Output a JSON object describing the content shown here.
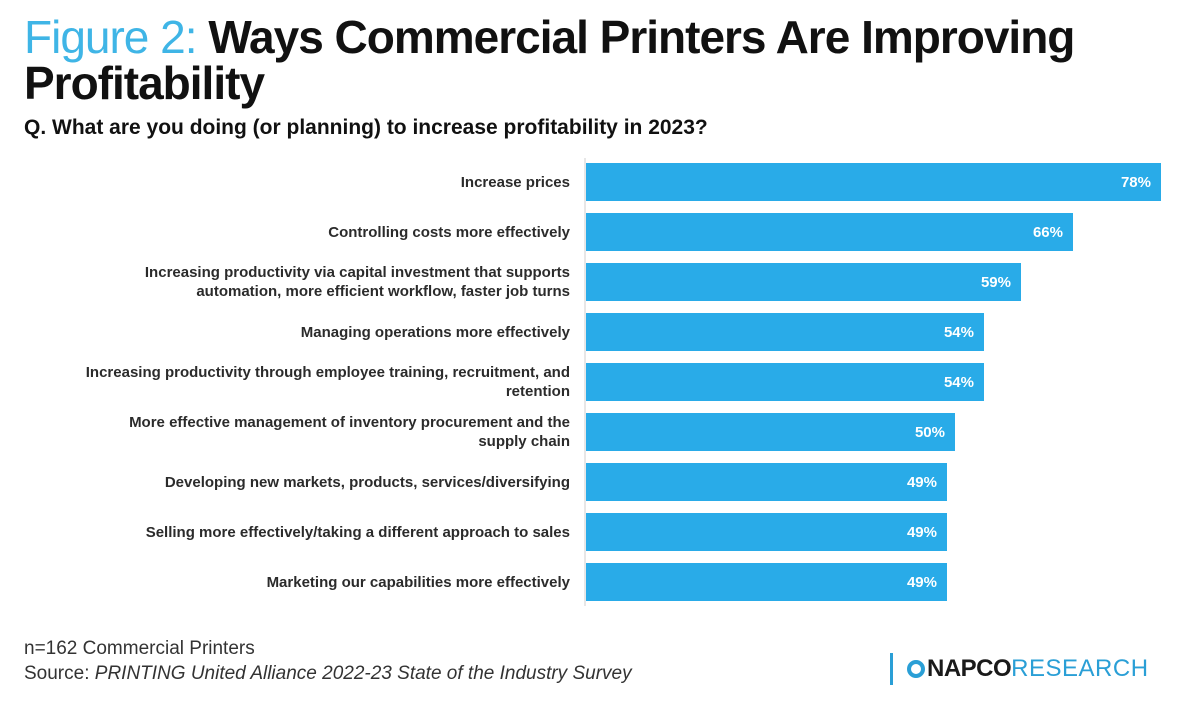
{
  "header": {
    "figure_prefix": "Figure 2:",
    "title": "Ways Commercial Printers Are Improving Profitability",
    "question": "Q. What are you doing (or planning) to increase profitability in 2023?"
  },
  "chart_data": {
    "type": "bar",
    "orientation": "horizontal",
    "title": "Ways Commercial Printers Are Improving Profitability",
    "categories": [
      "Increase prices",
      "Controlling costs more effectively",
      "Increasing productivity via capital investment that supports automation, more efficient workflow, faster job turns",
      "Managing operations more effectively",
      "Increasing productivity through employee training, recruitment, and retention",
      "More effective management of inventory procurement and the supply chain",
      "Developing new markets, products, services/diversifying",
      "Selling more effectively/taking a different approach to sales",
      "Marketing our capabilities more effectively"
    ],
    "category_lines": [
      [
        "Increase prices"
      ],
      [
        "Controlling costs more effectively"
      ],
      [
        "Increasing productivity via capital investment that supports",
        "automation, more efficient workflow, faster job turns"
      ],
      [
        "Managing operations more effectively"
      ],
      [
        "Increasing productivity through employee training, recruitment, and",
        "retention"
      ],
      [
        "More effective management of inventory procurement and the",
        "supply chain"
      ],
      [
        "Developing new markets, products, services/diversifying"
      ],
      [
        "Selling more effectively/taking a different approach to sales"
      ],
      [
        "Marketing our capabilities more effectively"
      ]
    ],
    "values": [
      78,
      66,
      59,
      54,
      54,
      50,
      49,
      49,
      49
    ],
    "value_labels": [
      "78%",
      "66%",
      "59%",
      "54%",
      "54%",
      "50%",
      "49%",
      "49%",
      "49%"
    ],
    "unit": "%",
    "xlim": [
      0,
      78
    ],
    "bar_color": "#29abe8",
    "xlabel": "",
    "ylabel": ""
  },
  "footer": {
    "sample": "n=162 Commercial Printers",
    "source_prefix": "Source: ",
    "source_title": "PRINTING United Alliance 2022-23 State of the Industry Survey"
  },
  "logo": {
    "napco": "NAPCO",
    "research": "RESEARCH"
  }
}
